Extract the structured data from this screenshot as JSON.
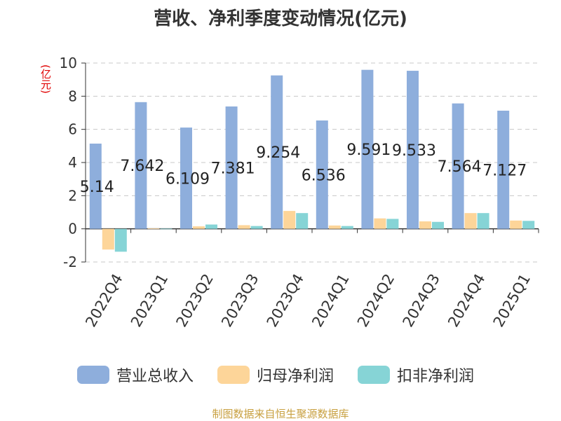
{
  "title": "营收、净利季度变动情况(亿元)",
  "source": "制图数据来自恒生聚源数据库",
  "chart_data": {
    "type": "bar",
    "ylabel": "(亿元)",
    "ylim": [
      -2,
      10
    ],
    "yticks": [
      -2,
      0,
      2,
      4,
      6,
      8,
      10
    ],
    "grid": true,
    "legend_position": "bottom",
    "categories": [
      "2022Q4",
      "2023Q1",
      "2023Q2",
      "2023Q3",
      "2023Q4",
      "2024Q1",
      "2024Q2",
      "2024Q3",
      "2024Q4",
      "2025Q1"
    ],
    "series": [
      {
        "name": "营业总收入",
        "color": "#8eaedc",
        "values": [
          5.14,
          7.642,
          6.109,
          7.381,
          9.254,
          6.536,
          9.591,
          9.533,
          7.564,
          7.127
        ],
        "labels": [
          "5.14",
          "7.642",
          "6.109",
          "7.381",
          "9.254",
          "6.536",
          "9.591",
          "9.533",
          "7.564",
          "7.127"
        ]
      },
      {
        "name": "归母净利润",
        "color": "#fdd599",
        "values": [
          -1.25,
          0.02,
          0.15,
          0.22,
          1.08,
          0.2,
          0.63,
          0.45,
          0.95,
          0.5
        ]
      },
      {
        "name": "扣非净利润",
        "color": "#86d4d6",
        "values": [
          -1.38,
          0.01,
          0.26,
          0.17,
          0.95,
          0.17,
          0.6,
          0.42,
          0.95,
          0.48
        ]
      }
    ]
  }
}
